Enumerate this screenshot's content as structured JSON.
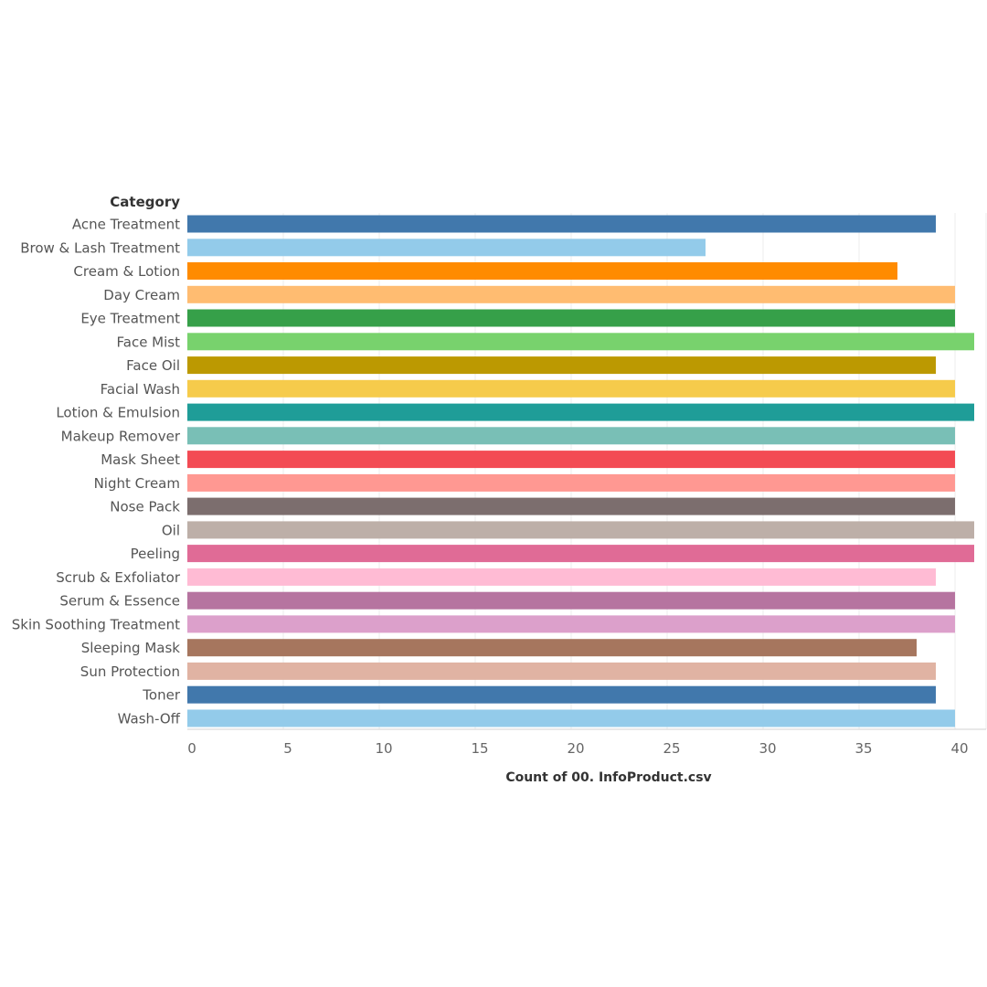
{
  "chart_data": {
    "type": "bar",
    "orientation": "horizontal",
    "row_header": "Category",
    "xlabel": "Count of 00. InfoProduct.csv",
    "xlim": [
      0,
      41
    ],
    "xticks": [
      0,
      5,
      10,
      15,
      20,
      25,
      30,
      35,
      40
    ],
    "grid": true,
    "categories": [
      "Acne Treatment",
      "Brow & Lash Treatment",
      "Cream & Lotion",
      "Day Cream",
      "Eye Treatment",
      "Face Mist",
      "Face Oil",
      "Facial Wash",
      "Lotion & Emulsion",
      "Makeup Remover",
      "Mask Sheet",
      "Night Cream",
      "Nose Pack",
      "Oil",
      "Peeling",
      "Scrub & Exfoliator",
      "Serum & Essence",
      "Skin Soothing Treatment",
      "Sleeping Mask",
      "Sun Protection",
      "Toner",
      "Wash-Off"
    ],
    "values": [
      39,
      27,
      37,
      40,
      40,
      41,
      39,
      40,
      41,
      40,
      40,
      40,
      40,
      41,
      41,
      39,
      40,
      40,
      38,
      39,
      39,
      40
    ],
    "colors": [
      "#4178ac",
      "#93cbea",
      "#ff8b00",
      "#ffbc71",
      "#36a049",
      "#78d26d",
      "#bc9901",
      "#f6cb4b",
      "#1f9d98",
      "#79bfb6",
      "#f34b54",
      "#ff9892",
      "#7c6e6e",
      "#bdafa8",
      "#e06b96",
      "#ffbbd4",
      "#b674a0",
      "#dca0cb",
      "#a6765e",
      "#e0b3a3",
      "#4178ac",
      "#93cbea"
    ]
  }
}
